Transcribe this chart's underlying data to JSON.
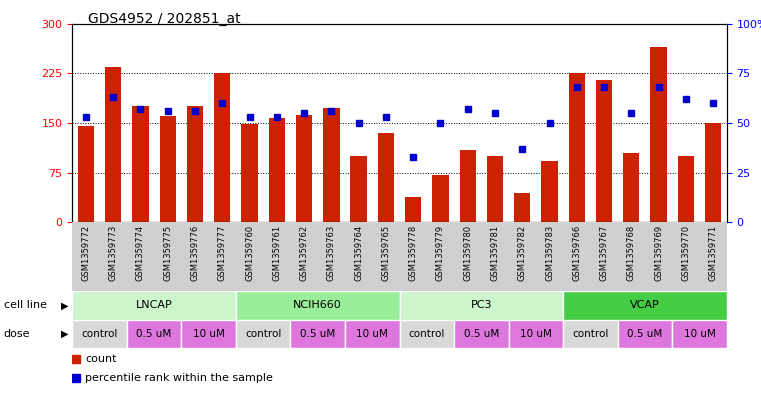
{
  "title": "GDS4952 / 202851_at",
  "samples": [
    "GSM1359772",
    "GSM1359773",
    "GSM1359774",
    "GSM1359775",
    "GSM1359776",
    "GSM1359777",
    "GSM1359760",
    "GSM1359761",
    "GSM1359762",
    "GSM1359763",
    "GSM1359764",
    "GSM1359765",
    "GSM1359778",
    "GSM1359779",
    "GSM1359780",
    "GSM1359781",
    "GSM1359782",
    "GSM1359783",
    "GSM1359766",
    "GSM1359767",
    "GSM1359768",
    "GSM1359769",
    "GSM1359770",
    "GSM1359771"
  ],
  "counts": [
    145,
    235,
    175,
    160,
    175,
    225,
    148,
    157,
    162,
    173,
    100,
    135,
    38,
    72,
    110,
    100,
    45,
    93,
    225,
    215,
    105,
    265,
    100,
    150
  ],
  "percentile_ranks": [
    53,
    63,
    57,
    56,
    56,
    60,
    53,
    53,
    55,
    56,
    50,
    53,
    33,
    50,
    57,
    55,
    37,
    50,
    68,
    68,
    55,
    68,
    62,
    60
  ],
  "cell_line_groups": [
    {
      "label": "LNCAP",
      "start": 0,
      "end": 5,
      "color": "#ccf5cc"
    },
    {
      "label": "NCIH660",
      "start": 6,
      "end": 11,
      "color": "#99ee99"
    },
    {
      "label": "PC3",
      "start": 12,
      "end": 17,
      "color": "#ccf5cc"
    },
    {
      "label": "VCAP",
      "start": 18,
      "end": 23,
      "color": "#44cc44"
    }
  ],
  "dose_groups": [
    {
      "label": "control",
      "start": 0,
      "end": 1
    },
    {
      "label": "0.5 uM",
      "start": 2,
      "end": 3
    },
    {
      "label": "10 uM",
      "start": 4,
      "end": 5
    },
    {
      "label": "control",
      "start": 6,
      "end": 7
    },
    {
      "label": "0.5 uM",
      "start": 8,
      "end": 9
    },
    {
      "label": "10 uM",
      "start": 10,
      "end": 11
    },
    {
      "label": "control",
      "start": 12,
      "end": 13
    },
    {
      "label": "0.5 uM",
      "start": 14,
      "end": 15
    },
    {
      "label": "10 uM",
      "start": 16,
      "end": 17
    },
    {
      "label": "control",
      "start": 18,
      "end": 19
    },
    {
      "label": "0.5 uM",
      "start": 20,
      "end": 21
    },
    {
      "label": "10 uM",
      "start": 22,
      "end": 23
    }
  ],
  "bar_color": "#cc2200",
  "dot_color": "#0000cc",
  "left_ylim": [
    0,
    300
  ],
  "right_ylim": [
    0,
    100
  ],
  "left_yticks": [
    0,
    75,
    150,
    225,
    300
  ],
  "right_yticks": [
    0,
    25,
    50,
    75,
    100
  ],
  "right_yticklabels": [
    "0",
    "25",
    "50",
    "75",
    "100%"
  ],
  "dose_control_color": "#d8d8d8",
  "dose_um_color": "#dd77dd",
  "xtick_bg_color": "#d0d0d0"
}
